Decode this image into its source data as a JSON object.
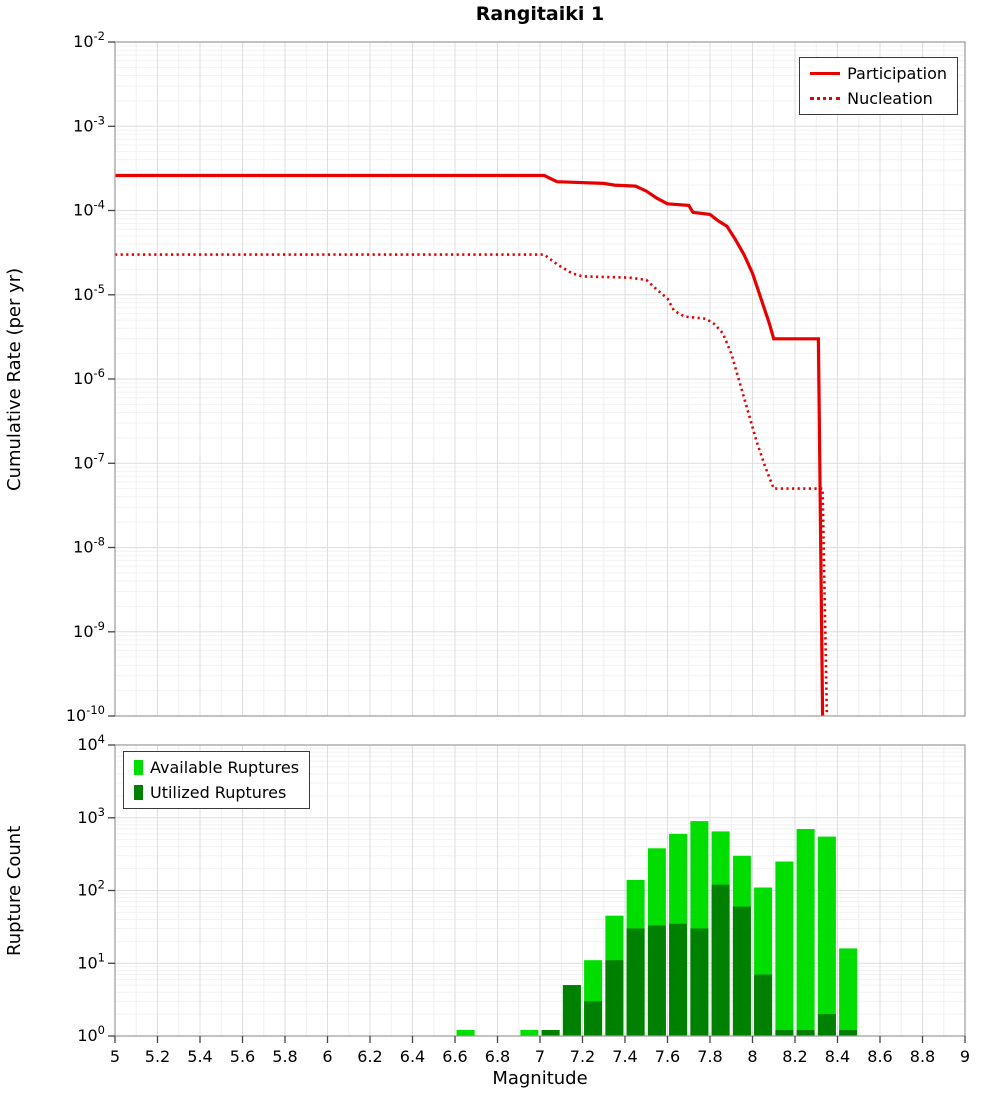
{
  "title": "Rangitaiki 1",
  "chart_data": [
    {
      "type": "line",
      "panel": "top",
      "title": "Rangitaiki 1",
      "xlabel": "",
      "ylabel": "Cumulative Rate (per yr)",
      "x_range": [
        5,
        9
      ],
      "y_scale": "log",
      "y_log_range_exponents": [
        -10,
        -2
      ],
      "grid": true,
      "legend_position": "top-right",
      "series": [
        {
          "name": "Participation",
          "style": "solid",
          "color": "#e60000",
          "points": [
            [
              5.0,
              0.00026
            ],
            [
              7.02,
              0.00026
            ],
            [
              7.08,
              0.00022
            ],
            [
              7.3,
              0.00021
            ],
            [
              7.35,
              0.0002
            ],
            [
              7.45,
              0.000195
            ],
            [
              7.5,
              0.00017
            ],
            [
              7.55,
              0.00014
            ],
            [
              7.6,
              0.00012
            ],
            [
              7.7,
              0.000115
            ],
            [
              7.72,
              9.5e-05
            ],
            [
              7.8,
              9e-05
            ],
            [
              7.84,
              7.5e-05
            ],
            [
              7.88,
              6.5e-05
            ],
            [
              7.92,
              4.5e-05
            ],
            [
              7.96,
              3e-05
            ],
            [
              8.0,
              1.8e-05
            ],
            [
              8.04,
              9e-06
            ],
            [
              8.08,
              4.5e-06
            ],
            [
              8.1,
              3e-06
            ],
            [
              8.31,
              3e-06
            ],
            [
              8.33,
              1e-10
            ]
          ]
        },
        {
          "name": "Nucleation",
          "style": "dotted",
          "color": "#e60000",
          "points": [
            [
              5.0,
              3e-05
            ],
            [
              7.02,
              3e-05
            ],
            [
              7.08,
              2.3e-05
            ],
            [
              7.15,
              1.8e-05
            ],
            [
              7.2,
              1.65e-05
            ],
            [
              7.42,
              1.6e-05
            ],
            [
              7.5,
              1.5e-05
            ],
            [
              7.55,
              1.15e-05
            ],
            [
              7.6,
              9e-06
            ],
            [
              7.63,
              6.5e-06
            ],
            [
              7.68,
              5.5e-06
            ],
            [
              7.78,
              5.2e-06
            ],
            [
              7.82,
              4.5e-06
            ],
            [
              7.86,
              3.5e-06
            ],
            [
              7.9,
              2e-06
            ],
            [
              7.94,
              9e-07
            ],
            [
              7.98,
              4e-07
            ],
            [
              8.02,
              1.8e-07
            ],
            [
              8.06,
              9e-08
            ],
            [
              8.1,
              5e-08
            ],
            [
              8.33,
              5e-08
            ],
            [
              8.35,
              1e-10
            ]
          ]
        }
      ]
    },
    {
      "type": "bar",
      "panel": "bottom",
      "xlabel": "Magnitude",
      "ylabel": "Rupture Count",
      "x_range": [
        5,
        9
      ],
      "xtick_labels": [
        "5",
        "5.2",
        "5.4",
        "5.6",
        "5.8",
        "6",
        "6.2",
        "6.4",
        "6.6",
        "6.8",
        "7",
        "7.2",
        "7.4",
        "7.6",
        "7.8",
        "8",
        "8.2",
        "8.4",
        "8.6",
        "8.8",
        "9"
      ],
      "y_scale": "log",
      "y_log_range_exponents": [
        0,
        4
      ],
      "bin_width": 0.1,
      "grid": true,
      "legend_position": "top-left",
      "categories": [
        6.65,
        6.75,
        6.85,
        6.95,
        7.05,
        7.15,
        7.25,
        7.35,
        7.45,
        7.55,
        7.65,
        7.75,
        7.85,
        7.95,
        8.05,
        8.15,
        8.25,
        8.35,
        8.45
      ],
      "series": [
        {
          "name": "Available Ruptures",
          "color": "#00dd00",
          "values": [
            1,
            0,
            0,
            1,
            1,
            5,
            11,
            45,
            140,
            380,
            600,
            900,
            650,
            300,
            110,
            250,
            700,
            550,
            16
          ]
        },
        {
          "name": "Utilized Ruptures",
          "color": "#008000",
          "values": [
            0,
            0,
            0,
            0,
            1,
            5,
            3,
            11,
            30,
            33,
            35,
            30,
            120,
            60,
            7,
            1,
            1,
            2,
            1
          ]
        }
      ]
    }
  ]
}
